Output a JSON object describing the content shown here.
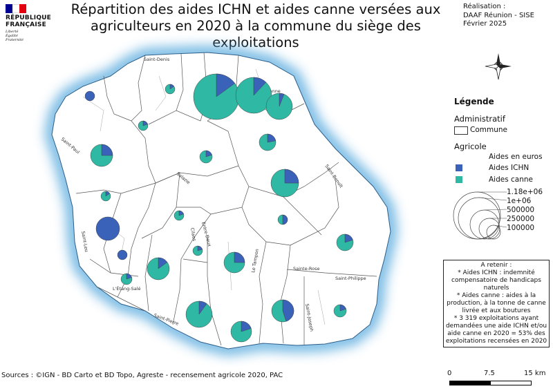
{
  "header": {
    "logo_line1": "RÉPUBLIQUE",
    "logo_line2": "FRANÇAISE",
    "motto_1": "Liberté",
    "motto_2": "Égalité",
    "motto_3": "Fraternité",
    "title": "Répartition des aides ICHN et aides canne versées aux agriculteurs en 2020 à la commune du siège des exploitations",
    "credit_label": "Réalisation :",
    "credit_org": "DAAF Réunion - SISE",
    "credit_date": "Février 2025"
  },
  "colors": {
    "ichn": "#3a62b8",
    "canne": "#2fb8a4",
    "halo": "#4fa6dc",
    "flag_blue": "#000091",
    "flag_red": "#e1000f"
  },
  "legend": {
    "title": "Légende",
    "admin_heading": "Administratif",
    "commune_label": "Commune",
    "agri_heading": "Agricole",
    "aides_label": "Aides en euros",
    "ichn_label": "Aides ICHN",
    "canne_label": "Aides canne",
    "size_values": [
      "1.18e+06",
      "1e+06",
      "500000",
      "250000",
      "100000"
    ]
  },
  "note": {
    "heading": "A retenir :",
    "line1": "* Aides ICHN : indemnité compensatoire de handicaps naturels",
    "line2": "* Aides canne : aides à la production, à la tonne de canne livrée et aux boutures",
    "line3": "* 3 319 exploitations ayant demandées une aide ICHN et/ou aide canne en 2020 = 53% des exploitations recensées en 2020"
  },
  "sources": "Sources : ©IGN - BD Carto et BD Topo, Agreste - recensement agricole 2020, PAC",
  "scale": {
    "labels": [
      "0",
      "7.5",
      "15 km"
    ]
  },
  "map": {
    "place_labels": [
      "Saint-Denis",
      "Sainte-Suzanne",
      "Saint-Paul",
      "Salazie",
      "Saint-Benoît",
      "Saint-Leu",
      "Cilaos",
      "Entre-Deux",
      "Le Tampon",
      "Sainte-Rose",
      "Saint-Philippe",
      "L'Étang-Salé",
      "Saint-Pierre",
      "Saint-Joseph"
    ],
    "pies": [
      {
        "ichn_share": 0.15
      },
      {
        "ichn_share": 0.12
      },
      {
        "ichn_share": 0.06
      },
      {
        "ichn_share": 0.15
      },
      {
        "ichn_share": 1.0
      },
      {
        "ichn_share": 0.2
      },
      {
        "ichn_share": 0.22
      },
      {
        "ichn_share": 0.2
      },
      {
        "ichn_share": 0.25
      },
      {
        "ichn_share": 0.25
      },
      {
        "ichn_share": 0.15
      },
      {
        "ichn_share": 0.2
      },
      {
        "ichn_share": 0.5
      },
      {
        "ichn_share": 1.0
      },
      {
        "ichn_share": 0.2
      },
      {
        "ichn_share": 1.0
      },
      {
        "ichn_share": 0.2
      },
      {
        "ichn_share": 0.25
      },
      {
        "ichn_share": 0.15
      },
      {
        "ichn_share": 0.2
      },
      {
        "ichn_share": 0.45
      },
      {
        "ichn_share": 0.1
      },
      {
        "ichn_share": 0.2
      },
      {
        "ichn_share": 0.2
      },
      {
        "ichn_share": 0.15
      }
    ]
  }
}
